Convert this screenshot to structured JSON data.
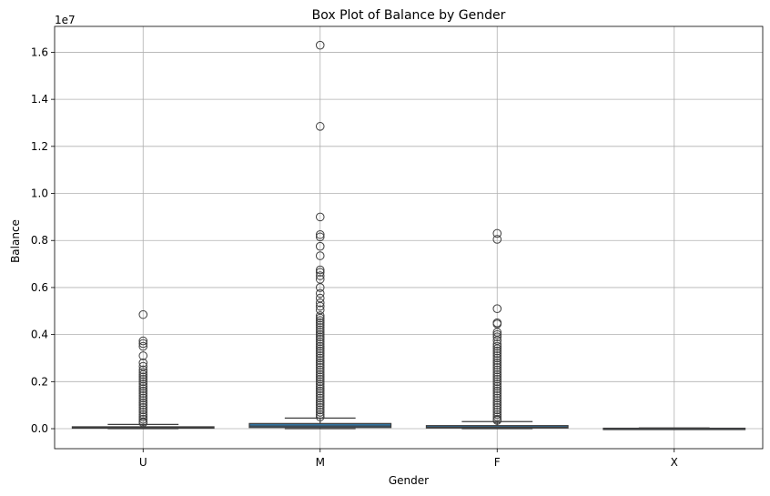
{
  "chart_data": {
    "type": "box",
    "title": "Box Plot of Balance by Gender",
    "xlabel": "Gender",
    "ylabel": "Balance",
    "offset_text": "1e7",
    "grid": true,
    "ylim": [
      -0.085,
      1.71
    ],
    "y_ticks": [
      0.0,
      0.2,
      0.4,
      0.6,
      0.8,
      1.0,
      1.2,
      1.4,
      1.6
    ],
    "y_tick_labels": [
      "0.0",
      "0.2",
      "0.4",
      "0.6",
      "0.8",
      "1.0",
      "1.2",
      "1.4",
      "1.6"
    ],
    "categories": [
      "U",
      "M",
      "F",
      "X"
    ],
    "box_color": "#3274a1",
    "line_color": "#3f3f3f",
    "boxes": [
      {
        "category": "U",
        "whisker_low": 0.0,
        "q1": 0.002,
        "median": 0.004,
        "q3": 0.008,
        "whisker_high": 0.018,
        "outliers": [
          0.485,
          0.373,
          0.362,
          0.35,
          0.31,
          0.28,
          0.265,
          0.25,
          0.24,
          0.23,
          0.22,
          0.21,
          0.2,
          0.19,
          0.18,
          0.17,
          0.16,
          0.15,
          0.14,
          0.13,
          0.12,
          0.11,
          0.1,
          0.09,
          0.08,
          0.07,
          0.06,
          0.05,
          0.04,
          0.03,
          0.025
        ]
      },
      {
        "category": "M",
        "whisker_low": 0.0,
        "q1": 0.005,
        "median": 0.011,
        "q3": 0.022,
        "whisker_high": 0.045,
        "outliers": [
          1.63,
          1.285,
          0.9,
          0.825,
          0.815,
          0.775,
          0.735,
          0.675,
          0.665,
          0.65,
          0.635,
          0.6,
          0.575,
          0.555,
          0.535,
          0.52,
          0.505,
          0.48,
          0.47,
          0.46,
          0.45,
          0.44,
          0.43,
          0.42,
          0.41,
          0.4,
          0.39,
          0.38,
          0.37,
          0.36,
          0.35,
          0.34,
          0.33,
          0.32,
          0.31,
          0.3,
          0.29,
          0.28,
          0.27,
          0.26,
          0.25,
          0.24,
          0.23,
          0.22,
          0.21,
          0.2,
          0.19,
          0.18,
          0.17,
          0.16,
          0.15,
          0.14,
          0.13,
          0.12,
          0.11,
          0.1,
          0.09,
          0.08,
          0.07,
          0.06,
          0.05
        ]
      },
      {
        "category": "F",
        "whisker_low": 0.0,
        "q1": 0.003,
        "median": 0.006,
        "q3": 0.013,
        "whisker_high": 0.03,
        "outliers": [
          0.83,
          0.805,
          0.51,
          0.45,
          0.445,
          0.41,
          0.4,
          0.39,
          0.375,
          0.36,
          0.35,
          0.34,
          0.33,
          0.32,
          0.31,
          0.3,
          0.29,
          0.28,
          0.27,
          0.26,
          0.25,
          0.24,
          0.23,
          0.22,
          0.21,
          0.2,
          0.19,
          0.18,
          0.17,
          0.16,
          0.15,
          0.14,
          0.13,
          0.12,
          0.11,
          0.1,
          0.09,
          0.08,
          0.07,
          0.06,
          0.05,
          0.04,
          0.035
        ]
      },
      {
        "category": "X",
        "whisker_low": 0.0,
        "q1": 0.0004,
        "median": 0.001,
        "q3": 0.002,
        "whisker_high": 0.003,
        "outliers": []
      }
    ]
  }
}
